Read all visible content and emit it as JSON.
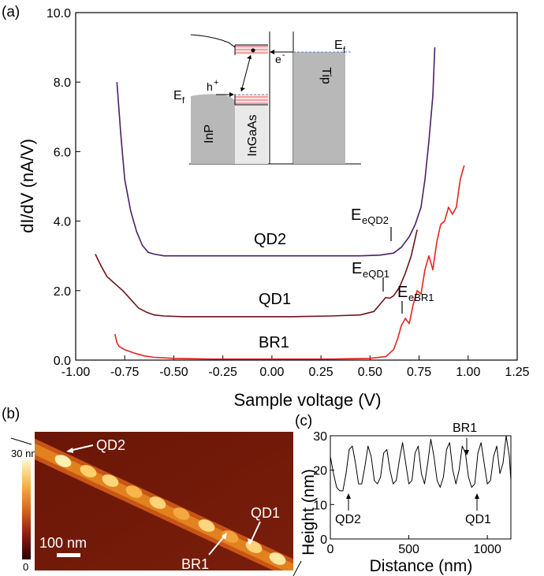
{
  "chart_data": [
    {
      "panel": "(a)",
      "type": "line",
      "xlabel": "Sample voltage (V)",
      "ylabel": "dI/dV (nA/V)",
      "xlim": [
        -1.0,
        1.25
      ],
      "ylim": [
        0.0,
        10.0
      ],
      "xticks": [
        "-1.00",
        "-0.75",
        "-0.50",
        "-0.25",
        "0.00",
        "0.25",
        "0.50",
        "0.75",
        "1.00",
        "1.25"
      ],
      "yticks": [
        "0.0",
        "2.0",
        "4.0",
        "6.0",
        "8.0",
        "10.0"
      ],
      "series": [
        {
          "name": "QD2",
          "color": "#4b1f66",
          "x": [
            -0.79,
            -0.77,
            -0.75,
            -0.72,
            -0.69,
            -0.66,
            -0.63,
            -0.6,
            -0.55,
            -0.45,
            -0.3,
            -0.1,
            0.1,
            0.3,
            0.45,
            0.55,
            0.62,
            0.66,
            0.7,
            0.73,
            0.76,
            0.78,
            0.8,
            0.82,
            0.83
          ],
          "y": [
            8.0,
            6.5,
            5.2,
            4.3,
            3.7,
            3.3,
            3.1,
            3.05,
            3.0,
            3.0,
            3.0,
            3.0,
            3.0,
            3.0,
            3.0,
            3.02,
            3.08,
            3.25,
            3.55,
            3.9,
            4.4,
            5.2,
            6.3,
            7.6,
            9.0
          ]
        },
        {
          "name": "QD1",
          "color": "#6b1419",
          "x": [
            -0.9,
            -0.87,
            -0.84,
            -0.8,
            -0.76,
            -0.72,
            -0.68,
            -0.64,
            -0.6,
            -0.55,
            -0.45,
            -0.3,
            -0.1,
            0.1,
            0.3,
            0.45,
            0.52,
            0.55,
            0.58,
            0.6,
            0.62,
            0.65,
            0.68,
            0.71,
            0.74
          ],
          "y": [
            3.05,
            2.7,
            2.4,
            2.2,
            2.0,
            1.75,
            1.5,
            1.38,
            1.3,
            1.27,
            1.25,
            1.25,
            1.25,
            1.25,
            1.27,
            1.3,
            1.4,
            1.6,
            1.8,
            1.78,
            1.85,
            2.1,
            2.5,
            3.0,
            3.75
          ]
        },
        {
          "name": "BR1",
          "color": "#e8231d",
          "x": [
            -0.8,
            -0.79,
            -0.78,
            -0.75,
            -0.7,
            -0.65,
            -0.6,
            -0.5,
            -0.3,
            0.0,
            0.3,
            0.5,
            0.58,
            0.62,
            0.64,
            0.66,
            0.68,
            0.7,
            0.72,
            0.74,
            0.76,
            0.78,
            0.8,
            0.82,
            0.84,
            0.86,
            0.88,
            0.9,
            0.92,
            0.94,
            0.96,
            0.98
          ],
          "y": [
            0.75,
            0.5,
            0.4,
            0.3,
            0.2,
            0.12,
            0.08,
            0.05,
            0.03,
            0.03,
            0.03,
            0.05,
            0.1,
            0.3,
            0.6,
            1.0,
            1.2,
            1.05,
            1.6,
            2.0,
            1.9,
            2.6,
            3.0,
            2.6,
            3.4,
            3.9,
            4.0,
            4.4,
            4.2,
            4.4,
            5.2,
            5.6
          ]
        }
      ],
      "annotations": {
        "qd2_label": "QD2",
        "qd1_label": "QD1",
        "br1_label": "BR1",
        "e_letter": "E",
        "eqd2_sub": "eQD2",
        "eqd1_sub": "eQD1",
        "ebr1_sub": "eBR1"
      },
      "inset": {
        "inp": "InP",
        "ingaas": "InGaAs",
        "tip": "Tip",
        "ef": "E",
        "ef_sub": "f",
        "hole": "h",
        "hole_sup": "+",
        "electron": "e",
        "electron_sup": "-"
      }
    },
    {
      "panel": "(b)",
      "type": "heatmap",
      "colorbar_max_label": "30 nm",
      "colorbar_min_label": "0",
      "scalebar_label": "100 nm",
      "labels": [
        "QD2",
        "QD1",
        "BR1"
      ]
    },
    {
      "panel": "(c)",
      "type": "line",
      "xlabel": "Distance (nm)",
      "ylabel": "Height (nm)",
      "xlim": [
        0,
        1150
      ],
      "ylim": [
        0,
        30
      ],
      "xticks": [
        "0",
        "500",
        "1000"
      ],
      "yticks": [
        "0",
        "10",
        "20",
        "30"
      ],
      "labels": [
        "QD2",
        "BR1",
        "QD1"
      ],
      "series": [
        {
          "x": [
            0,
            20,
            40,
            60,
            80,
            100,
            120,
            140,
            160,
            180,
            200,
            220,
            240,
            260,
            280,
            300,
            320,
            340,
            360,
            380,
            400,
            420,
            440,
            460,
            480,
            500,
            520,
            540,
            560,
            580,
            600,
            620,
            640,
            660,
            680,
            700,
            720,
            740,
            760,
            780,
            800,
            820,
            840,
            860,
            880,
            900,
            920,
            940,
            960,
            980,
            1000,
            1020,
            1040,
            1060,
            1080,
            1100,
            1120,
            1140,
            1150
          ],
          "y": [
            24,
            19,
            15,
            14,
            14,
            19,
            26,
            27,
            22,
            16,
            16,
            21,
            27,
            24,
            17,
            16,
            18,
            25,
            26,
            20,
            16,
            17,
            23,
            28,
            22,
            16,
            17,
            25,
            27,
            19,
            16,
            22,
            29,
            24,
            17,
            15,
            18,
            26,
            28,
            20,
            16,
            20,
            27,
            25,
            18,
            15,
            16,
            25,
            28,
            22,
            16,
            17,
            24,
            27,
            19,
            22,
            30,
            24,
            17
          ]
        }
      ]
    }
  ],
  "panel_labels": {
    "a": "(a)",
    "b": "(b)",
    "c": "(c)"
  }
}
